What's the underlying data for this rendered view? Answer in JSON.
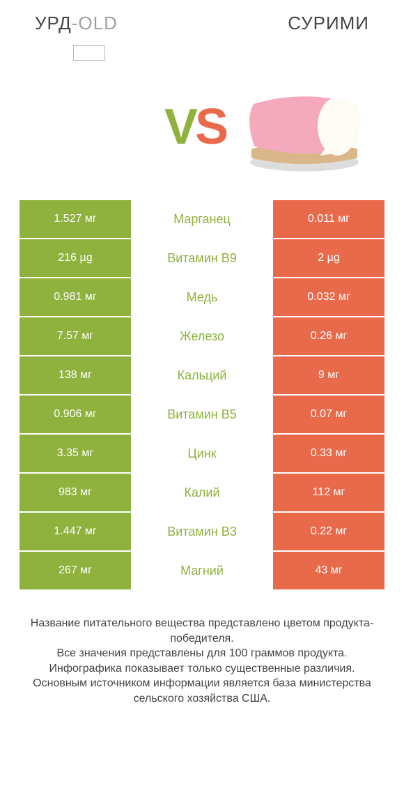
{
  "header": {
    "left_main": "УРД",
    "left_sub": "-OLD",
    "right": "СУРИМИ"
  },
  "vs": {
    "v": "V",
    "s": "S"
  },
  "colors": {
    "left_bg": "#8fb13e",
    "right_bg": "#e96a4b",
    "mid_text_winner_left": "#8fb13e",
    "surimi_body": "#f4a9bd",
    "surimi_inner": "#fdfbf4",
    "surimi_base": "#d9b78b",
    "surimi_shadow": "#dddddd"
  },
  "table": {
    "rows": [
      {
        "left": "1.527 мг",
        "mid": "Марганец",
        "right": "0.011 мг"
      },
      {
        "left": "216 µg",
        "mid": "Витамин B9",
        "right": "2 µg"
      },
      {
        "left": "0.981 мг",
        "mid": "Медь",
        "right": "0.032 мг"
      },
      {
        "left": "7.57 мг",
        "mid": "Железо",
        "right": "0.26 мг"
      },
      {
        "left": "138 мг",
        "mid": "Кальций",
        "right": "9 мг"
      },
      {
        "left": "0.906 мг",
        "mid": "Витамин B5",
        "right": "0.07 мг"
      },
      {
        "left": "3.35 мг",
        "mid": "Цинк",
        "right": "0.33 мг"
      },
      {
        "left": "983 мг",
        "mid": "Калий",
        "right": "112 мг"
      },
      {
        "left": "1.447 мг",
        "mid": "Витамин B3",
        "right": "0.22 мг"
      },
      {
        "left": "267 мг",
        "mid": "Магний",
        "right": "43 мг"
      }
    ]
  },
  "footer": {
    "l1": "Название питательного вещества представлено цветом продукта-победителя.",
    "l2": "Все значения представлены для 100 граммов продукта.",
    "l3": "Инфографика показывает только существенные различия.",
    "l4": "Основным источником информации является база министерства сельского хозяйства США."
  }
}
